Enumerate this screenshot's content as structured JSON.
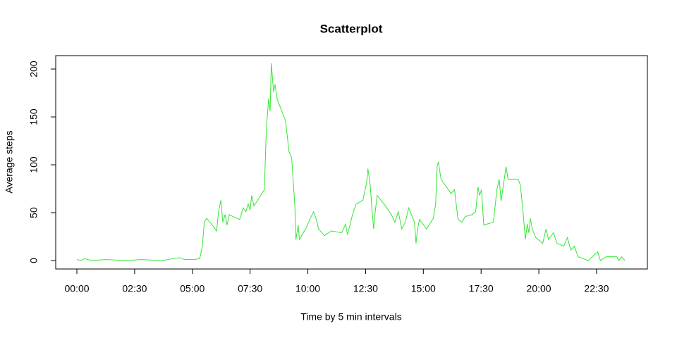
{
  "chart_data": {
    "type": "line",
    "title": "Scatterplot",
    "xlabel": "Time by 5 min intervals",
    "ylabel": "Average steps",
    "xlim": [
      -55,
      1482
    ],
    "ylim": [
      -8.8,
      214
    ],
    "xticks": [
      {
        "value": 0,
        "label": "00:00"
      },
      {
        "value": 150,
        "label": "02:30"
      },
      {
        "value": 300,
        "label": "05:00"
      },
      {
        "value": 450,
        "label": "07:30"
      },
      {
        "value": 600,
        "label": "10:00"
      },
      {
        "value": 750,
        "label": "12:30"
      },
      {
        "value": 900,
        "label": "15:00"
      },
      {
        "value": 1050,
        "label": "17:30"
      },
      {
        "value": 1200,
        "label": "20:00"
      },
      {
        "value": 1350,
        "label": "22:30"
      }
    ],
    "yticks": [
      0,
      50,
      100,
      150,
      200
    ],
    "x": [
      0,
      11,
      20,
      38,
      75,
      130,
      167,
      222,
      249,
      267,
      280,
      304,
      319,
      326,
      331,
      337,
      350,
      363,
      368,
      374,
      379,
      385,
      390,
      396,
      405,
      423,
      432,
      439,
      445,
      450,
      454,
      460,
      487,
      492,
      498,
      502,
      505,
      511,
      515,
      520,
      542,
      551,
      558,
      566,
      569,
      575,
      578,
      597,
      606,
      615,
      621,
      628,
      643,
      661,
      688,
      698,
      703,
      716,
      725,
      743,
      753,
      756,
      762,
      767,
      771,
      775,
      780,
      798,
      817,
      826,
      835,
      844,
      853,
      862,
      877,
      881,
      885,
      890,
      908,
      926,
      932,
      936,
      939,
      946,
      972,
      981,
      990,
      1000,
      1009,
      1027,
      1036,
      1042,
      1046,
      1051,
      1057,
      1064,
      1082,
      1091,
      1097,
      1102,
      1108,
      1115,
      1120,
      1146,
      1152,
      1159,
      1165,
      1170,
      1174,
      1178,
      1183,
      1192,
      1210,
      1219,
      1225,
      1238,
      1247,
      1265,
      1274,
      1283,
      1292,
      1302,
      1329,
      1344,
      1353,
      1360,
      1375,
      1403,
      1408,
      1415,
      1424
    ],
    "series": [
      {
        "color": "#33e633",
        "values": [
          1,
          0,
          2,
          0,
          1,
          0,
          1,
          0,
          2,
          3,
          1,
          1,
          2,
          15,
          40,
          44,
          38,
          31,
          51,
          63,
          40,
          48,
          37,
          48,
          46,
          43,
          55,
          51,
          59,
          53,
          68,
          57,
          74,
          136,
          169,
          156,
          206,
          176,
          184,
          169,
          146,
          114,
          107,
          59,
          22,
          37,
          22,
          35,
          44,
          51,
          44,
          33,
          26,
          31,
          29,
          38,
          27,
          48,
          59,
          63,
          82,
          96,
          79,
          51,
          33,
          51,
          68,
          59,
          48,
          40,
          51,
          33,
          40,
          55,
          40,
          18,
          33,
          43,
          33,
          44,
          59,
          99,
          103,
          85,
          70,
          74,
          43,
          40,
          46,
          48,
          51,
          77,
          68,
          74,
          37,
          38,
          40,
          74,
          85,
          62,
          79,
          98,
          85,
          85,
          79,
          51,
          22,
          38,
          29,
          44,
          33,
          24,
          18,
          33,
          22,
          29,
          18,
          15,
          24,
          11,
          15,
          4,
          0,
          6,
          9,
          0,
          4,
          4,
          0,
          4,
          0
        ]
      }
    ]
  }
}
